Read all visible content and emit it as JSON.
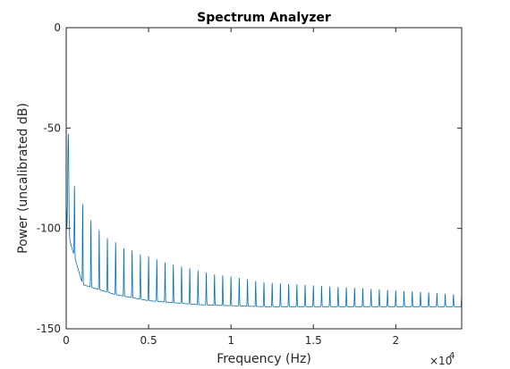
{
  "chart_data": {
    "type": "line",
    "title": "Spectrum Analyzer",
    "xlabel": "Frequency (Hz)",
    "ylabel": "Power (uncalibrated dB)",
    "xlim": [
      0,
      24000
    ],
    "ylim": [
      -150,
      0
    ],
    "x_ticks": [
      0,
      5000,
      10000,
      15000,
      20000
    ],
    "x_tick_labels": [
      "0",
      "0.5",
      "1",
      "1.5",
      "2"
    ],
    "x_exponent_label": "×10",
    "x_exponent_power": "4",
    "y_ticks": [
      0,
      -50,
      -100,
      -150
    ],
    "y_tick_labels": [
      "0",
      "-50",
      "-100",
      "-150"
    ],
    "grid": false,
    "line_color": "#0072BD",
    "series": [
      {
        "harmonic_spacing_hz": 500,
        "peaks": {
          "x": [
            0,
            125,
            500,
            1000,
            1500,
            2000,
            2500,
            3000,
            3500,
            4000,
            4500,
            5000,
            6000,
            7000,
            8000,
            9000,
            10000,
            12000,
            14000,
            16000,
            18000,
            20000,
            22000,
            23500
          ],
          "y": [
            -90,
            -53,
            -79,
            -88,
            -96,
            -101,
            -105,
            -107,
            -110,
            -111,
            -113,
            -114,
            -117,
            -119,
            -121,
            -123,
            -124,
            -127,
            -128,
            -129,
            -130,
            -131,
            -132,
            -133
          ]
        },
        "valleys": {
          "x": [
            0,
            1000,
            3000,
            5000,
            8000,
            12000,
            16000,
            20000,
            24000
          ],
          "y": [
            -100,
            -128,
            -133,
            -136,
            -138,
            -139,
            -139,
            -139,
            -139
          ]
        }
      }
    ]
  }
}
